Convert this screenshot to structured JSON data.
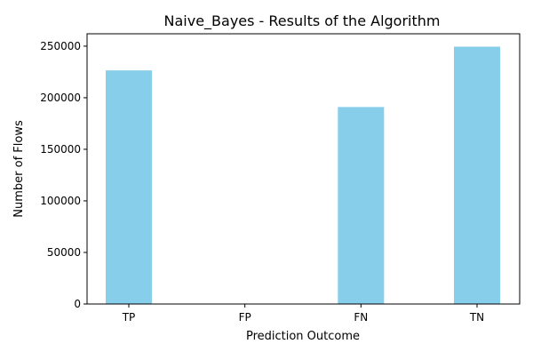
{
  "chart_data": {
    "type": "bar",
    "title": "Naive_Bayes - Results of the Algorithm",
    "xlabel": "Prediction Outcome",
    "ylabel": "Number of Flows",
    "categories": [
      "TP",
      "FP",
      "FN",
      "TN"
    ],
    "values": [
      226500,
      0,
      191000,
      249500
    ],
    "ylim": [
      0,
      262000
    ],
    "yticks": [
      0,
      50000,
      100000,
      150000,
      200000,
      250000
    ],
    "bar_color": "#87CEEB",
    "grid": false,
    "legend": "none"
  }
}
